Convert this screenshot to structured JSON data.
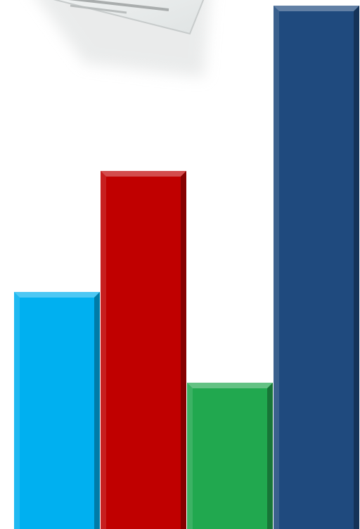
{
  "chart_data": {
    "type": "bar",
    "categories": [
      null,
      null,
      null,
      null
    ],
    "values": [
      337,
      509,
      208,
      744
    ],
    "colors": [
      "#00b0f0",
      "#c00000",
      "#21a84f",
      "#1f4a7e"
    ],
    "ylim": [
      0,
      752
    ]
  }
}
